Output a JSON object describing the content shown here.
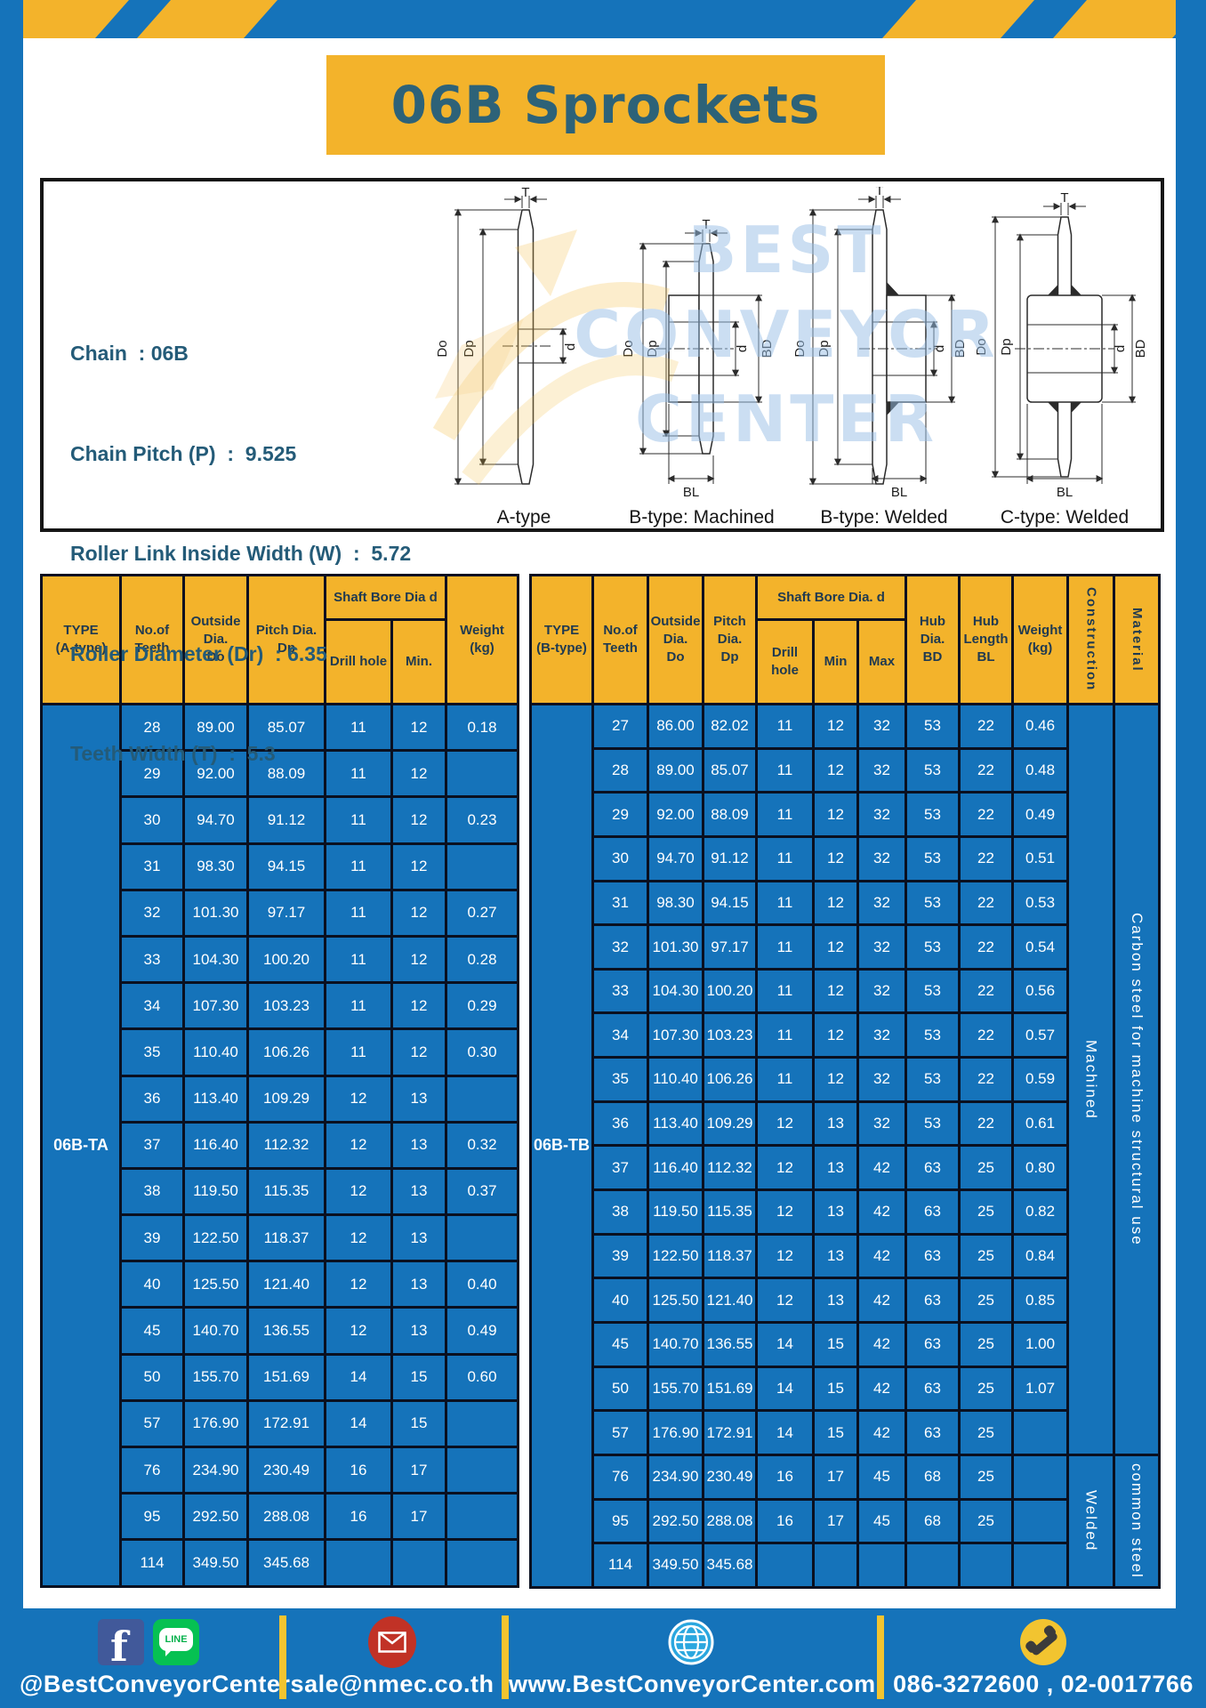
{
  "title": "06B Sprockets",
  "specs": {
    "lines": [
      "Chain  : 06B",
      "Chain Pitch (P)  :  9.525",
      "Roller Link Inside Width (W)  :  5.72",
      "Roller Diameter (Dr)  : 6.35",
      "Teeth Width (T)  :  5.3"
    ]
  },
  "diagrams": {
    "watermark_lines": [
      "BEST",
      "CONVEYOR",
      "CENTER"
    ],
    "captions": [
      "A-type",
      "B-type: Machined",
      "B-type: Welded",
      "C-type: Welded"
    ],
    "dim_labels": {
      "t": "T",
      "do": "Do",
      "dp": "Dp",
      "d": "d",
      "bd": "BD",
      "bl": "BL"
    }
  },
  "table_a": {
    "headers": {
      "type": "TYPE\n(A-type)",
      "teeth": "No.of\nTeeth",
      "outside": "Outside\nDia.\nDo",
      "pitch": "Pitch Dia.\nDp",
      "shaft": "Shaft Bore Dia d",
      "drill": "Drill hole",
      "min": "Min.",
      "weight": "Weight\n(kg)"
    },
    "type_label": "06B-TA",
    "rows": [
      [
        "28",
        "89.00",
        "85.07",
        "11",
        "12",
        "0.18"
      ],
      [
        "29",
        "92.00",
        "88.09",
        "11",
        "12",
        ""
      ],
      [
        "30",
        "94.70",
        "91.12",
        "11",
        "12",
        "0.23"
      ],
      [
        "31",
        "98.30",
        "94.15",
        "11",
        "12",
        ""
      ],
      [
        "32",
        "101.30",
        "97.17",
        "11",
        "12",
        "0.27"
      ],
      [
        "33",
        "104.30",
        "100.20",
        "11",
        "12",
        "0.28"
      ],
      [
        "34",
        "107.30",
        "103.23",
        "11",
        "12",
        "0.29"
      ],
      [
        "35",
        "110.40",
        "106.26",
        "11",
        "12",
        "0.30"
      ],
      [
        "36",
        "113.40",
        "109.29",
        "12",
        "13",
        ""
      ],
      [
        "37",
        "116.40",
        "112.32",
        "12",
        "13",
        "0.32"
      ],
      [
        "38",
        "119.50",
        "115.35",
        "12",
        "13",
        "0.37"
      ],
      [
        "39",
        "122.50",
        "118.37",
        "12",
        "13",
        ""
      ],
      [
        "40",
        "125.50",
        "121.40",
        "12",
        "13",
        "0.40"
      ],
      [
        "45",
        "140.70",
        "136.55",
        "12",
        "13",
        "0.49"
      ],
      [
        "50",
        "155.70",
        "151.69",
        "14",
        "15",
        "0.60"
      ],
      [
        "57",
        "176.90",
        "172.91",
        "14",
        "15",
        ""
      ],
      [
        "76",
        "234.90",
        "230.49",
        "16",
        "17",
        ""
      ],
      [
        "95",
        "292.50",
        "288.08",
        "16",
        "17",
        ""
      ],
      [
        "114",
        "349.50",
        "345.68",
        "",
        "",
        ""
      ]
    ]
  },
  "table_b": {
    "headers": {
      "type": "TYPE\n(B-type)",
      "teeth": "No.of\nTeeth",
      "outside": "Outside\nDia.\nDo",
      "pitch": "Pitch\nDia.\nDp",
      "shaft": "Shaft Bore Dia. d",
      "drill": "Drill hole",
      "min": "Min",
      "max": "Max",
      "hub_dia": "Hub\nDia.\nBD",
      "hub_len": "Hub\nLength\nBL",
      "weight": "Weight\n(kg)",
      "construction": "Construction",
      "material": "Material"
    },
    "type_label": "06B-TB",
    "rows": [
      [
        "27",
        "86.00",
        "82.02",
        "11",
        "12",
        "32",
        "53",
        "22",
        "0.46"
      ],
      [
        "28",
        "89.00",
        "85.07",
        "11",
        "12",
        "32",
        "53",
        "22",
        "0.48"
      ],
      [
        "29",
        "92.00",
        "88.09",
        "11",
        "12",
        "32",
        "53",
        "22",
        "0.49"
      ],
      [
        "30",
        "94.70",
        "91.12",
        "11",
        "12",
        "32",
        "53",
        "22",
        "0.51"
      ],
      [
        "31",
        "98.30",
        "94.15",
        "11",
        "12",
        "32",
        "53",
        "22",
        "0.53"
      ],
      [
        "32",
        "101.30",
        "97.17",
        "11",
        "12",
        "32",
        "53",
        "22",
        "0.54"
      ],
      [
        "33",
        "104.30",
        "100.20",
        "11",
        "12",
        "32",
        "53",
        "22",
        "0.56"
      ],
      [
        "34",
        "107.30",
        "103.23",
        "11",
        "12",
        "32",
        "53",
        "22",
        "0.57"
      ],
      [
        "35",
        "110.40",
        "106.26",
        "11",
        "12",
        "32",
        "53",
        "22",
        "0.59"
      ],
      [
        "36",
        "113.40",
        "109.29",
        "12",
        "13",
        "32",
        "53",
        "22",
        "0.61"
      ],
      [
        "37",
        "116.40",
        "112.32",
        "12",
        "13",
        "42",
        "63",
        "25",
        "0.80"
      ],
      [
        "38",
        "119.50",
        "115.35",
        "12",
        "13",
        "42",
        "63",
        "25",
        "0.82"
      ],
      [
        "39",
        "122.50",
        "118.37",
        "12",
        "13",
        "42",
        "63",
        "25",
        "0.84"
      ],
      [
        "40",
        "125.50",
        "121.40",
        "12",
        "13",
        "42",
        "63",
        "25",
        "0.85"
      ],
      [
        "45",
        "140.70",
        "136.55",
        "14",
        "15",
        "42",
        "63",
        "25",
        "1.00"
      ],
      [
        "50",
        "155.70",
        "151.69",
        "14",
        "15",
        "42",
        "63",
        "25",
        "1.07"
      ],
      [
        "57",
        "176.90",
        "172.91",
        "14",
        "15",
        "42",
        "63",
        "25",
        ""
      ],
      [
        "76",
        "234.90",
        "230.49",
        "16",
        "17",
        "45",
        "68",
        "25",
        ""
      ],
      [
        "95",
        "292.50",
        "288.08",
        "16",
        "17",
        "45",
        "68",
        "25",
        ""
      ],
      [
        "114",
        "349.50",
        "345.68",
        "",
        "",
        "",
        "",
        "",
        ""
      ]
    ],
    "construction_groups": [
      {
        "label": "Machined",
        "span": 17
      },
      {
        "label": "Welded",
        "span": 3
      }
    ],
    "material_groups": [
      {
        "label": "Carbon steel for machine structural use",
        "span": 17
      },
      {
        "label": "common steel",
        "span": 3
      }
    ]
  },
  "footer": {
    "facebook_glyph": "f",
    "line_label": "LINE",
    "sections": [
      {
        "text": "@BestConveyorCenter"
      },
      {
        "text": "sale@nmec.co.th"
      },
      {
        "text": "www.BestConveyorCenter.com"
      },
      {
        "text": "086-3272600 , 02-0017766"
      }
    ]
  },
  "colors": {
    "frame_blue": "#1573BA",
    "accent_yellow": "#F3B32B",
    "divider_yellow": "#F2C430",
    "title_text": "#2D6278",
    "header_text": "#203A50",
    "spec_text": "#245B78",
    "table_border": "#0A1020",
    "watermark_blue": "#98BFE6"
  }
}
